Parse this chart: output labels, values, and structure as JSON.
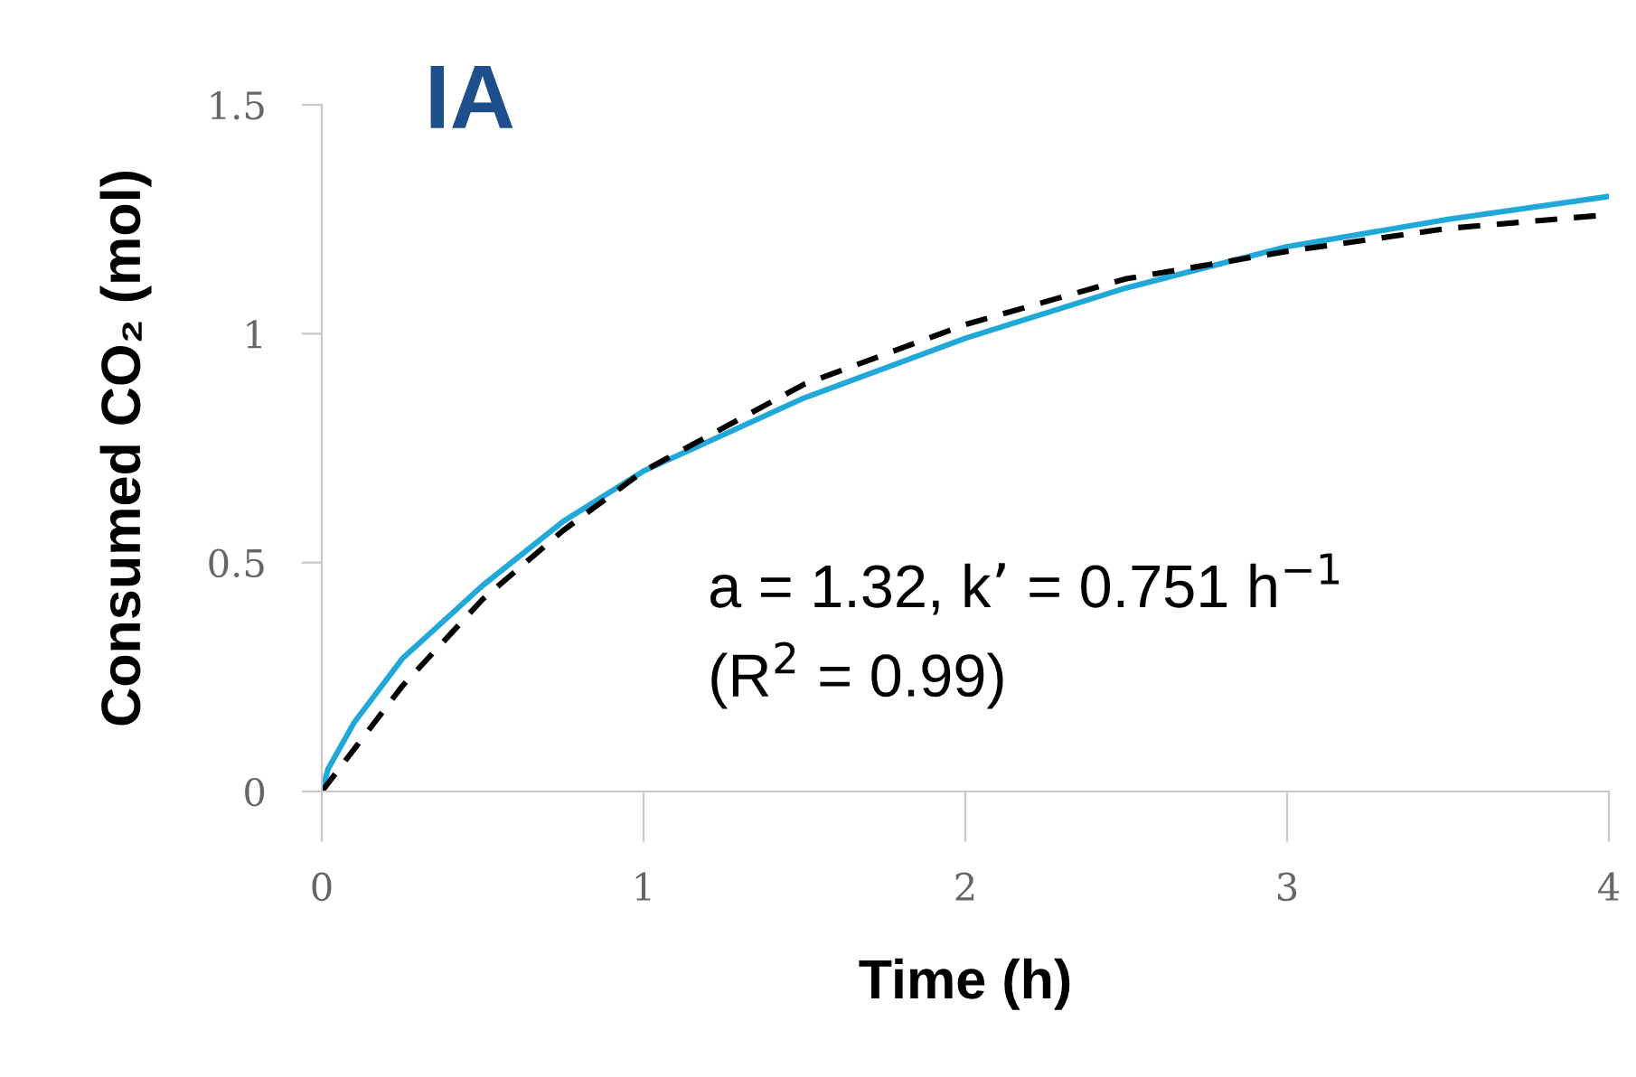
{
  "chart_data": {
    "type": "line",
    "title": "IA",
    "xlabel": "Time (h)",
    "ylabel": "Consumed CO₂ (mol)",
    "annotations": [
      "a = 1.32, k’ = 0.751 h$^{−1}$\n(R$^{2}$ = 0.99)"
    ],
    "series": [
      {
        "color": "#1fa8d8",
        "line_style": "solid",
        "x": [
          0,
          0.02,
          0.1,
          0.25,
          0.5,
          0.75,
          1,
          1.5,
          2,
          2.5,
          3,
          3.5,
          4
        ],
        "values": [
          0,
          0.05,
          0.15,
          0.29,
          0.45,
          0.59,
          0.7,
          0.86,
          0.99,
          1.1,
          1.19,
          1.25,
          1.3
        ]
      },
      {
        "color": "#000000",
        "line_style": "dashed",
        "x": [
          0,
          0.25,
          0.5,
          0.75,
          1,
          1.5,
          2,
          2.5,
          3,
          3.5,
          4
        ],
        "values": [
          0,
          0.23,
          0.42,
          0.57,
          0.7,
          0.89,
          1.02,
          1.12,
          1.18,
          1.23,
          1.26
        ]
      }
    ],
    "xlim": [
      0,
      4
    ],
    "ylim": [
      0,
      1.5
    ],
    "xticks": [
      0,
      1,
      2,
      3,
      4
    ],
    "yticks": [
      0,
      0.5,
      1,
      1.5
    ],
    "grid": false,
    "legend": false,
    "marker": "none"
  }
}
